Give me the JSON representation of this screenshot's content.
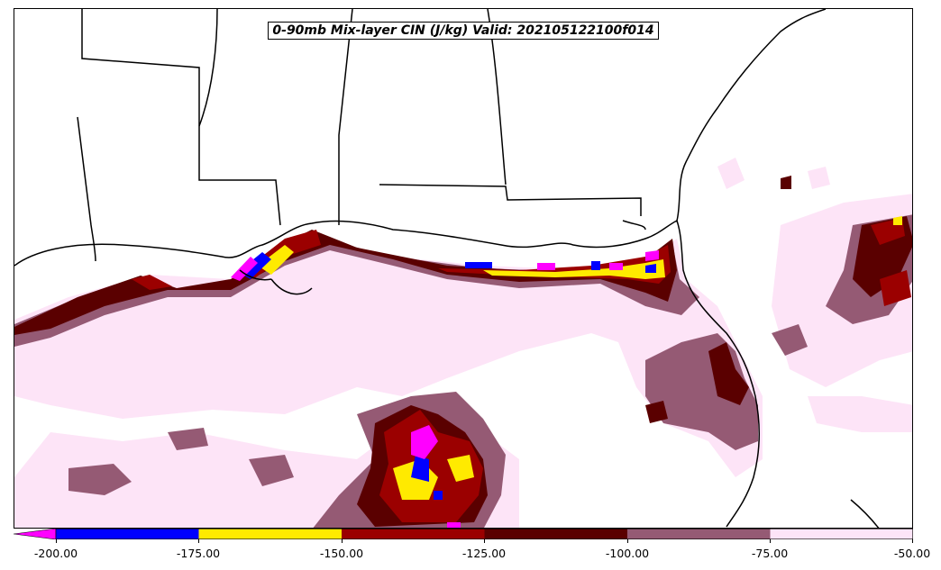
{
  "title": "0-90mb Mix-layer CIN (J/kg) Valid: 202105122100f014",
  "colors": {
    "below_-200": "#ff00ff",
    "-200_-175": "#0000ff",
    "-175_-150": "#ffea00",
    "-150_-125": "#9b0000",
    "-125_-100": "#5a0000",
    "-100_-75": "#955a74",
    "-75_-50": "#fde4f7",
    "land_outline": "#000000",
    "background": "#ffffff"
  },
  "colorbar": {
    "extend": "min",
    "ticks": [
      "-200.00",
      "-175.00",
      "-150.00",
      "-125.00",
      "-100.00",
      "-75.00",
      "-50.00"
    ],
    "bounds": [
      -200,
      -175,
      -150,
      -125,
      -100,
      -75,
      -50
    ]
  },
  "map": {
    "region": "Southeastern US / Gulf of Mexico",
    "field": "0-90mb Mix-layer CIN",
    "units": "J/kg"
  }
}
